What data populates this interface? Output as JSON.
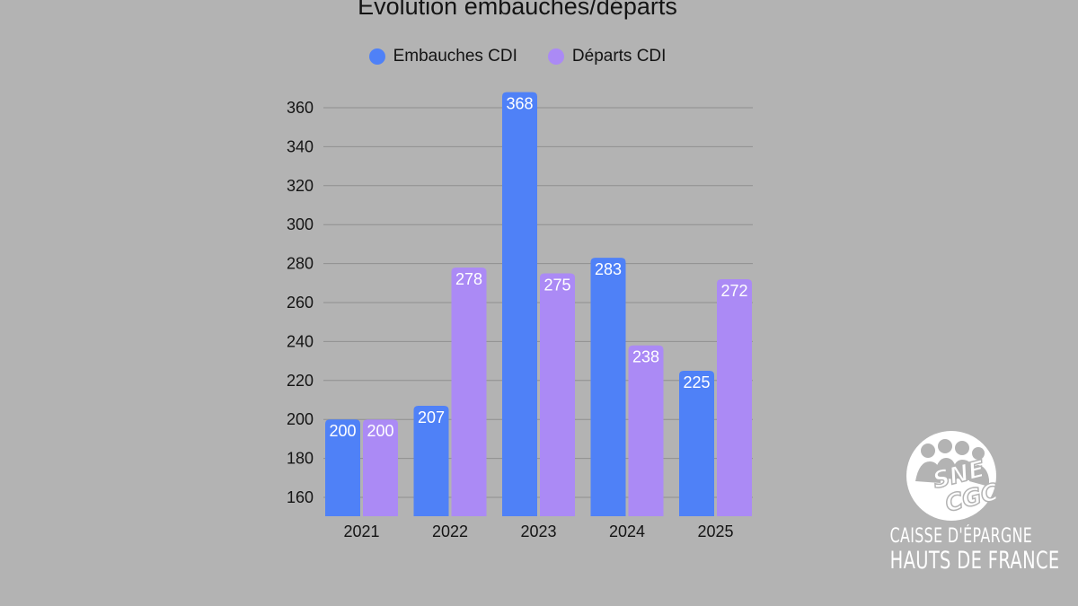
{
  "chart_data": {
    "type": "bar",
    "title": "Évolution embauches/départs",
    "categories": [
      "2021",
      "2022",
      "2023",
      "2024",
      "2025"
    ],
    "series": [
      {
        "name": "Embauches CDI",
        "values": [
          200,
          207,
          368,
          283,
          225
        ],
        "color": "#4f81f7"
      },
      {
        "name": "Départs CDI",
        "values": [
          200,
          278,
          275,
          238,
          272
        ],
        "color": "#ab8af5"
      }
    ],
    "yticks": [
      160,
      180,
      200,
      220,
      240,
      260,
      280,
      300,
      320,
      340,
      360
    ],
    "ylim": [
      150,
      370
    ],
    "grid": true,
    "legend": "top-center"
  },
  "logo": {
    "wordmark": "SNE CGC",
    "line1": "CAISSE D'ÉPARGNE",
    "line2": "HAUTS DE FRANCE"
  }
}
